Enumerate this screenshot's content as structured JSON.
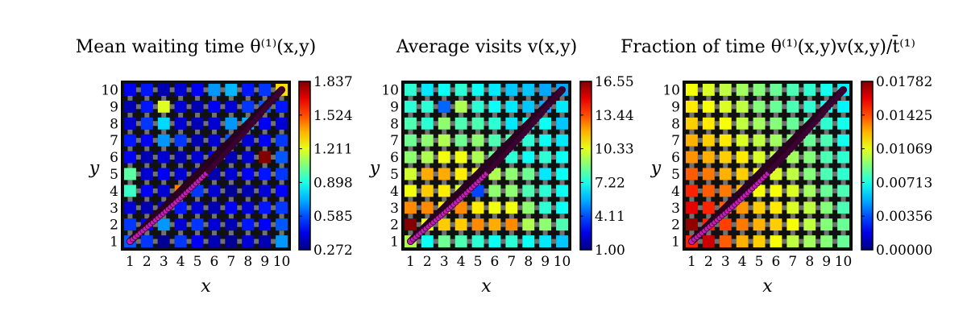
{
  "chart_data": [
    {
      "type": "heatmap",
      "title": "Mean waiting time θ⁽¹⁾(x,y)",
      "xlabel": "x",
      "ylabel": "y",
      "x": [
        1,
        2,
        3,
        4,
        5,
        6,
        7,
        8,
        9,
        10
      ],
      "y": [
        1,
        2,
        3,
        4,
        5,
        6,
        7,
        8,
        9,
        10
      ],
      "xlim": [
        0.5,
        10.5
      ],
      "ylim": [
        0.5,
        10.5
      ],
      "colorbar": {
        "min": 0.272,
        "max": 1.837,
        "ticks": [
          "1.837",
          "1.524",
          "1.211",
          "0.898",
          "0.585",
          "0.272"
        ]
      },
      "z": [
        [
          0.6,
          0.55,
          0.3,
          0.55,
          0.45,
          0.35,
          0.3,
          0.4,
          0.35,
          0.7
        ],
        [
          0.55,
          0.45,
          0.7,
          0.4,
          0.55,
          0.4,
          0.35,
          0.5,
          0.45,
          0.6
        ],
        [
          0.4,
          0.35,
          0.4,
          0.5,
          0.4,
          0.35,
          0.45,
          0.4,
          0.5,
          0.55
        ],
        [
          0.95,
          0.45,
          0.4,
          1.45,
          0.55,
          0.4,
          0.3,
          0.35,
          0.4,
          0.45
        ],
        [
          1.0,
          0.4,
          0.45,
          0.4,
          0.35,
          0.35,
          0.4,
          0.45,
          0.5,
          0.55
        ],
        [
          0.45,
          0.35,
          0.4,
          0.35,
          0.4,
          0.45,
          0.35,
          0.4,
          1.83,
          0.6
        ],
        [
          0.5,
          0.45,
          0.7,
          0.55,
          0.35,
          0.4,
          0.6,
          0.4,
          0.45,
          0.55
        ],
        [
          0.4,
          0.55,
          0.8,
          0.4,
          0.35,
          0.4,
          0.7,
          0.75,
          0.45,
          0.4
        ],
        [
          0.35,
          0.5,
          1.2,
          0.4,
          0.35,
          0.45,
          0.4,
          0.55,
          0.6,
          0.5
        ],
        [
          0.45,
          0.5,
          0.35,
          0.4,
          0.45,
          0.7,
          0.75,
          0.5,
          0.55,
          1.3
        ]
      ],
      "path_xy": [
        [
          1,
          1
        ],
        [
          10,
          10
        ]
      ]
    },
    {
      "type": "heatmap",
      "title": "Average visits v(x,y)",
      "xlabel": "x",
      "ylabel": "y",
      "x": [
        1,
        2,
        3,
        4,
        5,
        6,
        7,
        8,
        9,
        10
      ],
      "y": [
        1,
        2,
        3,
        4,
        5,
        6,
        7,
        8,
        9,
        10
      ],
      "xlim": [
        0.5,
        10.5
      ],
      "ylim": [
        0.5,
        10.5
      ],
      "colorbar": {
        "min": 1.0,
        "max": 16.55,
        "ticks": [
          "16.55",
          "13.44",
          "10.33",
          "7.22",
          "4.11",
          "1.00"
        ]
      },
      "z": [
        [
          9.5,
          7.0,
          8.5,
          8.0,
          7.5,
          7.0,
          7.5,
          7.0,
          6.5,
          6.0
        ],
        [
          16.5,
          10.5,
          11.5,
          11.5,
          12.5,
          12.0,
          12.5,
          9.5,
          9.0,
          8.0
        ],
        [
          12.5,
          12.5,
          11.0,
          12.5,
          11.0,
          10.5,
          10.5,
          9.0,
          7.5,
          7.0
        ],
        [
          10.5,
          11.5,
          11.0,
          10.0,
          4.0,
          9.0,
          9.0,
          8.0,
          7.5,
          7.0
        ],
        [
          10.0,
          12.0,
          12.0,
          11.0,
          10.5,
          9.5,
          9.0,
          8.5,
          6.5,
          7.0
        ],
        [
          9.0,
          9.5,
          10.5,
          10.5,
          9.5,
          8.5,
          7.5,
          7.0,
          7.5,
          7.0
        ],
        [
          8.5,
          9.0,
          9.5,
          8.5,
          9.0,
          8.0,
          8.0,
          7.5,
          7.0,
          6.5
        ],
        [
          8.0,
          7.5,
          9.0,
          8.0,
          8.0,
          7.5,
          6.5,
          7.0,
          7.0,
          6.0
        ],
        [
          7.5,
          7.5,
          4.5,
          9.5,
          7.5,
          7.0,
          6.5,
          6.0,
          5.5,
          6.5
        ],
        [
          7.5,
          6.5,
          7.0,
          7.5,
          7.0,
          6.5,
          6.0,
          6.0,
          5.5,
          5.5
        ]
      ],
      "path_xy": [
        [
          1,
          1
        ],
        [
          10,
          10
        ]
      ]
    },
    {
      "type": "heatmap",
      "title": "Fraction of time θ⁽¹⁾(x,y)v(x,y)/t̄⁽¹⁾",
      "xlabel": "x",
      "ylabel": "y",
      "x": [
        1,
        2,
        3,
        4,
        5,
        6,
        7,
        8,
        9,
        10
      ],
      "y": [
        1,
        2,
        3,
        4,
        5,
        6,
        7,
        8,
        9,
        10
      ],
      "xlim": [
        0.5,
        10.5
      ],
      "ylim": [
        0.5,
        10.5
      ],
      "colorbar": {
        "min": 0.0,
        "max": 0.01782,
        "ticks": [
          "0.01782",
          "0.01425",
          "0.01069",
          "0.00713",
          "0.00356",
          "0.00000"
        ]
      },
      "z": [
        [
          0.015,
          0.0165,
          0.014,
          0.0125,
          0.012,
          0.011,
          0.01,
          0.0095,
          0.009,
          0.0085
        ],
        [
          0.0175,
          0.015,
          0.0145,
          0.0135,
          0.0125,
          0.012,
          0.011,
          0.01,
          0.009,
          0.0085
        ],
        [
          0.016,
          0.015,
          0.014,
          0.013,
          0.012,
          0.0115,
          0.0105,
          0.01,
          0.009,
          0.008
        ],
        [
          0.015,
          0.014,
          0.0135,
          0.0125,
          0.011,
          0.011,
          0.0105,
          0.0095,
          0.0085,
          0.008
        ],
        [
          0.014,
          0.0135,
          0.0125,
          0.012,
          0.011,
          0.0105,
          0.01,
          0.009,
          0.008,
          0.0075
        ],
        [
          0.013,
          0.0125,
          0.012,
          0.0115,
          0.0105,
          0.01,
          0.0095,
          0.009,
          0.008,
          0.0075
        ],
        [
          0.0125,
          0.012,
          0.0115,
          0.0105,
          0.01,
          0.0095,
          0.009,
          0.0085,
          0.008,
          0.007
        ],
        [
          0.012,
          0.0115,
          0.011,
          0.01,
          0.0095,
          0.009,
          0.0085,
          0.008,
          0.0075,
          0.007
        ],
        [
          0.0115,
          0.011,
          0.0105,
          0.01,
          0.009,
          0.0085,
          0.008,
          0.0075,
          0.007,
          0.0065
        ],
        [
          0.011,
          0.0105,
          0.01,
          0.0095,
          0.009,
          0.0085,
          0.008,
          0.0075,
          0.007,
          0.0065
        ]
      ],
      "path_xy": [
        [
          1,
          1
        ],
        [
          10,
          10
        ]
      ]
    }
  ]
}
